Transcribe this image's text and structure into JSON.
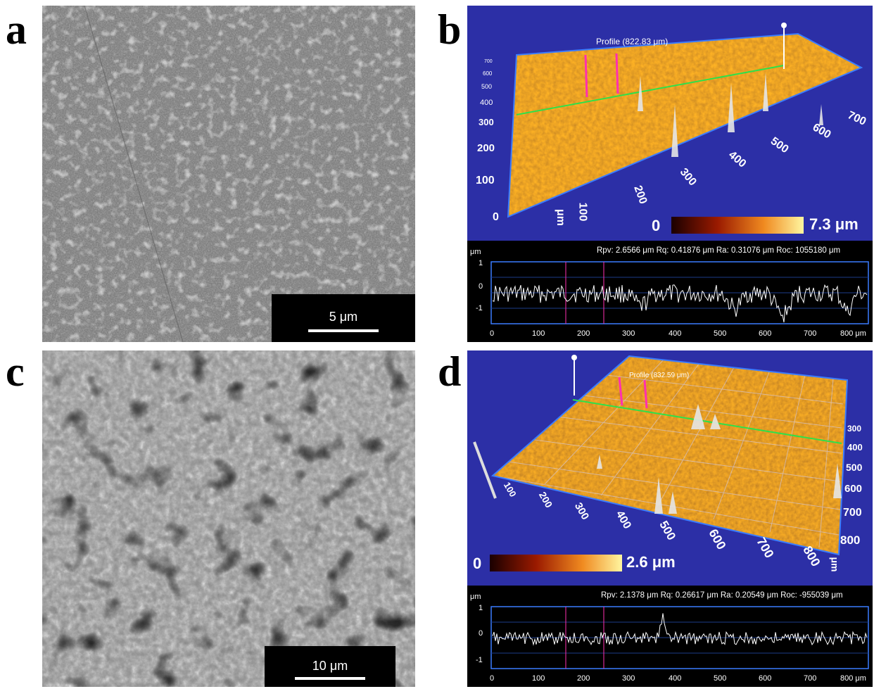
{
  "panels": {
    "a": {
      "letter": "a",
      "scale_label": "5 μm"
    },
    "b": {
      "letter": "b",
      "profile_label": "Profile (822.83 μm)",
      "scale_min": "0",
      "scale_max": "7.3 μm",
      "axis_x_ticks": [
        "100",
        "200",
        "300",
        "400",
        "500",
        "600",
        "700"
      ],
      "axis_y_ticks": [
        "0",
        "100",
        "200",
        "300",
        "400",
        "500",
        "600",
        "700"
      ],
      "axis_unit": "μm",
      "stats": "Rpv: 2.6566 μm  Rq: 0.41876 μm  Ra: 0.31076 μm  Roc: 1055180 μm",
      "profile_unit": "μm",
      "profile_y_ticks": [
        "1",
        "0",
        "-1"
      ],
      "profile_x_ticks": [
        "0",
        "100",
        "200",
        "300",
        "400",
        "500",
        "600",
        "700",
        "800 μm"
      ]
    },
    "c": {
      "letter": "c",
      "scale_label": "10 μm"
    },
    "d": {
      "letter": "d",
      "profile_label": "Profile (832.59 μm)",
      "scale_min": "0",
      "scale_max": "2.6 μm",
      "axis_x_ticks": [
        "100",
        "200",
        "300",
        "400",
        "500",
        "600",
        "700",
        "800"
      ],
      "axis_y_ticks": [
        "300",
        "400",
        "500",
        "600",
        "700",
        "800"
      ],
      "axis_unit": "μm",
      "stats": "Rpv: 2.1378 μm  Rq: 0.26617 μm  Ra: 0.20549 μm  Roc: -955039 μm",
      "profile_unit": "μm",
      "profile_y_ticks": [
        "1",
        "0",
        "-1"
      ],
      "profile_x_ticks": [
        "0",
        "100",
        "200",
        "300",
        "400",
        "500",
        "600",
        "700",
        "800 μm"
      ]
    }
  },
  "colors": {
    "topo_background": "#2c2fa6",
    "surface_orange": "#d46a10",
    "profile_line": "#ffffff",
    "marker_magenta": "#ff2fb0",
    "marker_green": "#2ee04a",
    "grid_blue": "#3a7cff"
  }
}
